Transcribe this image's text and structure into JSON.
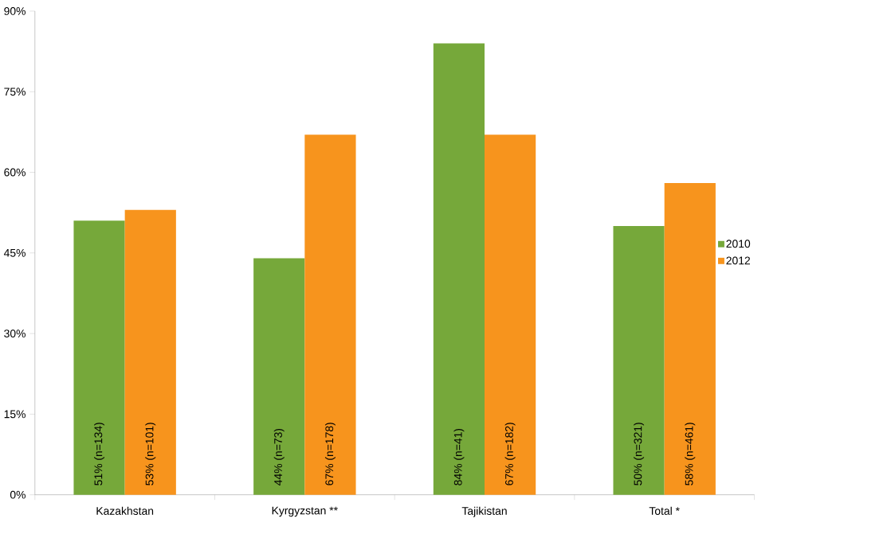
{
  "chart_data": {
    "type": "bar",
    "categories": [
      "Kazakhstan",
      "Kyrgyzstan **",
      "Tajikistan",
      "Total *"
    ],
    "series": [
      {
        "name": "2010",
        "color": "#76a83a",
        "values": [
          51,
          44,
          84,
          50
        ],
        "value_labels": [
          "51% (n=134)",
          "44% (n=73)",
          "84% (n=41)",
          "50% (n=321)"
        ]
      },
      {
        "name": "2012",
        "color": "#f7941d",
        "values": [
          53,
          67,
          67,
          58
        ],
        "value_labels": [
          "53% (n=101)",
          "67% (n=178)",
          "67% (n=182)",
          "58% (n=461)"
        ]
      }
    ],
    "ylim": [
      0,
      90
    ],
    "yticks": [
      {
        "value": 0,
        "label": "0%"
      },
      {
        "value": 15,
        "label": "15%"
      },
      {
        "value": 30,
        "label": "30%"
      },
      {
        "value": 45,
        "label": "45%"
      },
      {
        "value": 60,
        "label": "60%"
      },
      {
        "value": 75,
        "label": "75%"
      },
      {
        "value": 90,
        "label": "90%"
      }
    ],
    "grid": false,
    "legend": "right"
  }
}
